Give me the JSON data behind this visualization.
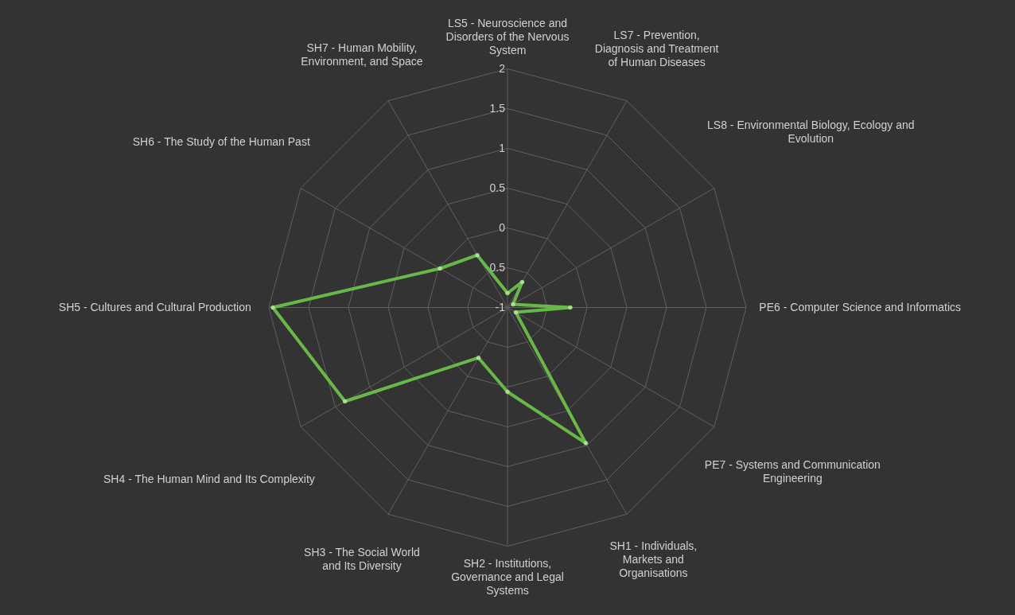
{
  "chart_data": {
    "type": "radar",
    "categories": [
      "LS5 - Neuroscience and Disorders of the Nervous System",
      "LS7 - Prevention, Diagnosis and Treatment of Human Diseases",
      "LS8 - Environmental Biology, Ecology and Evolution",
      "PE6 - Computer Science and Informatics",
      "PE7 - Systems and Communication Engineering",
      "SH1 - Individuals, Markets and Organisations",
      "SH2 - Institutions, Governance and Legal Systems",
      "SH3 - The Social World and Its Diversity",
      "SH4 - The Human Mind and Its Complexity",
      "SH5 - Cultures and Cultural Production",
      "SH6 - The Study of the Human Past",
      "SH7 - Human Mobility, Environment, and Space"
    ],
    "series": [
      {
        "color": "#6cc04a",
        "values": [
          -0.82,
          -0.63,
          -0.92,
          -0.21,
          -0.88,
          0.97,
          0.06,
          -0.27,
          1.36,
          1.95,
          -0.02,
          -0.24
        ]
      }
    ],
    "ylim": [
      -1,
      2
    ],
    "yticks": [
      -1,
      -0.5,
      0,
      0.5,
      1,
      1.5,
      2
    ],
    "grid": true,
    "marker": "circle"
  }
}
